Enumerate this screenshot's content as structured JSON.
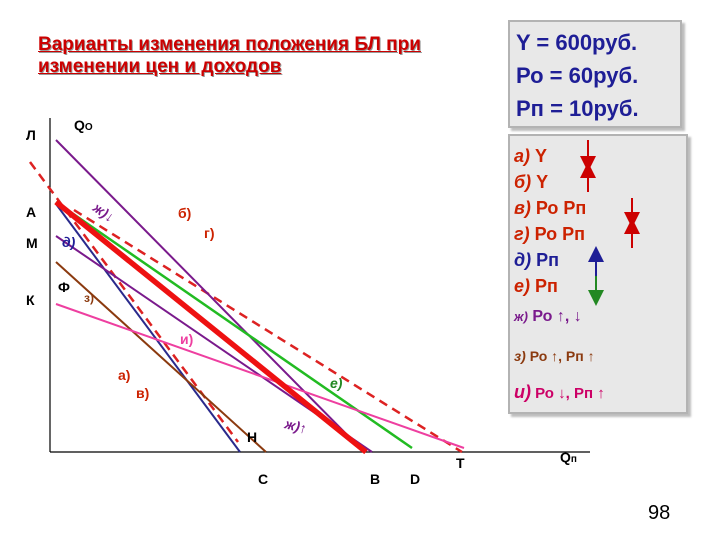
{
  "title": "Варианты изменения положения БЛ при изменении цен и доходов",
  "info": [
    "Y = 600руб.",
    "Ро = 60руб.",
    "Рп = 10руб."
  ],
  "axes": {
    "y_label": "Q",
    "y_sub": "О",
    "x_label": "Q",
    "x_sub": "п"
  },
  "y_points": [
    "Л",
    "А",
    "М",
    "Ф",
    "К"
  ],
  "x_points": [
    "Н",
    "С",
    "В",
    "D",
    "Т"
  ],
  "line_labels": {
    "a": "а)",
    "b": "б)",
    "v": "в)",
    "g": "г)",
    "d": "д)",
    "e": "е)",
    "zh1": "ж)↓",
    "zh2": "ж)↑",
    "z": "з)",
    "i": "и)"
  },
  "legend": [
    {
      "letter": "а)",
      "text": " Y",
      "color": "#cc2200",
      "arrow": "down"
    },
    {
      "letter": "б)",
      "text": " Y",
      "color": "#cc2200",
      "arrow": "up"
    },
    {
      "letter": "в)",
      "text": " Ро Рп",
      "color": "#cc2200",
      "arrow": "down"
    },
    {
      "letter": "г)",
      "text": " Ро Рп",
      "color": "#cc2200",
      "arrow": "up"
    },
    {
      "letter": "д)",
      "text": " Рп",
      "color": "#1e1e96",
      "arrow": "up"
    },
    {
      "letter": "е)",
      "text": " Рп",
      "color": "#cc2200",
      "arrow": "down"
    },
    {
      "letter": "ж)",
      "text": " Ро ↑, ↓",
      "color": "#7a1a8c"
    },
    {
      "letter": "з)",
      "text": " Ро ↑,  Рп ↑",
      "color": "#8b3a0f"
    },
    {
      "letter": "и)",
      "text": " Ро ↓,  Рп ↑",
      "color": "#cc0066"
    }
  ],
  "colors": {
    "base": "#ee1111",
    "dashed": "#dd2222",
    "purple": "#7a1a8c",
    "green": "#22bb22",
    "navy": "#2a2a8c",
    "brown": "#8b3a0f",
    "pink": "#ee3fa0"
  },
  "slide_number": "98"
}
